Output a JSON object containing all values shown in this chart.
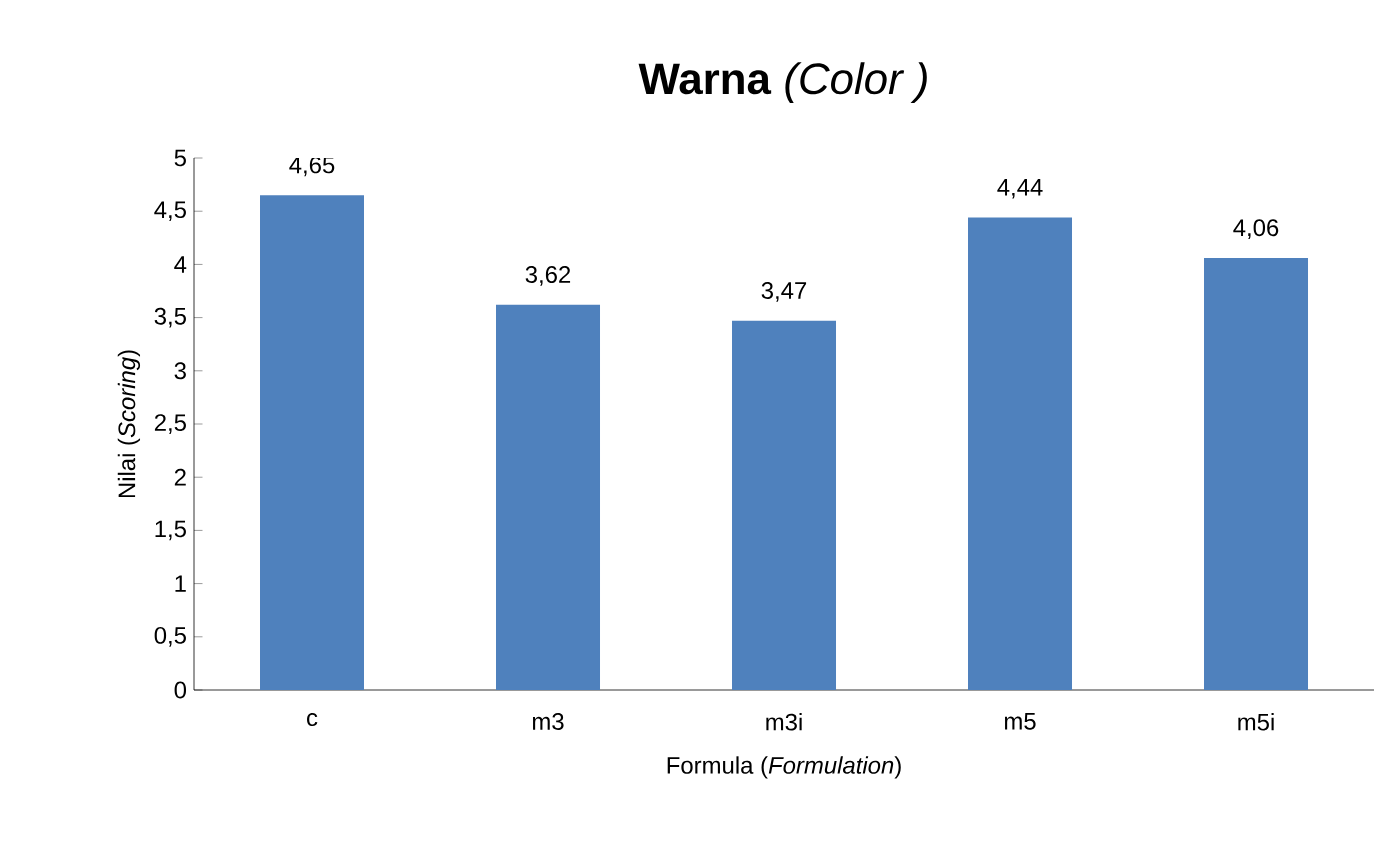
{
  "chart_data": {
    "type": "bar",
    "title": "**Warna** *(Color )*",
    "xlabel": "Formula (*Formulation*)",
    "ylabel": "Nilai (*Scoring*)",
    "categories": [
      "c",
      "m3",
      "m3i",
      "m5",
      "m5i"
    ],
    "values": [
      4.65,
      3.62,
      3.47,
      4.44,
      4.06
    ],
    "value_labels": [
      "4,65",
      "3,62",
      "3,47",
      "4,44",
      "4,06"
    ],
    "color": "#4f81bd",
    "ylim": [
      0,
      5
    ],
    "yticks": [
      0,
      {
        "value": 0.5,
        "label": "0,5"
      },
      1,
      {
        "value": 1.5,
        "label": "1,5"
      },
      2,
      {
        "value": 2.5,
        "label": "2,5"
      },
      3,
      {
        "value": 3.5,
        "label": "3,5"
      },
      4,
      {
        "value": 4.5,
        "label": "4,5"
      },
      5
    ]
  }
}
